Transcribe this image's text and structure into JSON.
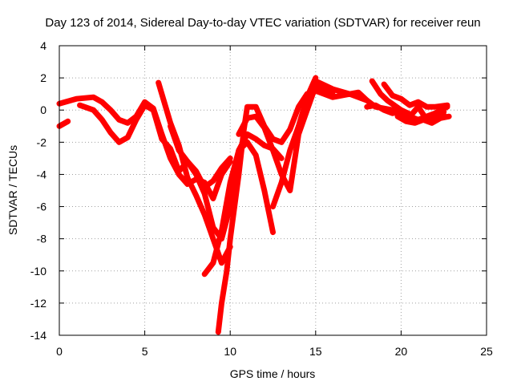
{
  "chart_data": {
    "type": "scatter",
    "title": "Day 123 of 2014, Sidereal Day-to-day VTEC variation (SDTVAR) for receiver reun",
    "xlabel": "GPS time / hours",
    "ylabel": "SDTVAR / TECUs",
    "xlim": [
      0,
      25
    ],
    "ylim": [
      -14,
      4
    ],
    "xticks": [
      0,
      5,
      10,
      15,
      20,
      25
    ],
    "yticks": [
      -14,
      -12,
      -10,
      -8,
      -6,
      -4,
      -2,
      0,
      2,
      4
    ],
    "grid": true,
    "marker": "plus",
    "color": "#ff0000",
    "series": [
      {
        "name": "arc-1",
        "x": [
          0,
          0.5
        ],
        "y": [
          -1,
          -0.7
        ]
      },
      {
        "name": "arc-2",
        "x": [
          0,
          1,
          2,
          2.5,
          3,
          3.5,
          4,
          4.5,
          5,
          5.5,
          6,
          6.5,
          7,
          7.5,
          8,
          8.5,
          9,
          9.5,
          10
        ],
        "y": [
          0.4,
          0.7,
          0.8,
          0.5,
          0,
          -0.6,
          -0.8,
          -0.4,
          0.5,
          0.1,
          -1.5,
          -3,
          -4,
          -4.6,
          -4.3,
          -4.5,
          -5.5,
          -4,
          -3.2
        ]
      },
      {
        "name": "arc-3",
        "x": [
          1.2,
          2,
          2.5,
          3,
          3.5,
          4,
          4.5,
          5,
          5.5,
          6,
          6.5,
          7,
          7.5,
          8,
          8.5,
          9,
          9.5,
          10
        ],
        "y": [
          0.3,
          0,
          -0.6,
          -1.4,
          -2,
          -1.7,
          -0.6,
          0.3,
          0,
          -1.8,
          -2.4,
          -3.8,
          -3.2,
          -3.8,
          -4.8,
          -4.4,
          -3.6,
          -3
        ]
      },
      {
        "name": "arc-4",
        "x": [
          5.8,
          6,
          6.5,
          7,
          7.5,
          8,
          8.5,
          9,
          9.5,
          10
        ],
        "y": [
          1.7,
          1,
          -0.8,
          -2.2,
          -4.2,
          -5.3,
          -6.5,
          -8,
          -9.5,
          -8.5
        ]
      },
      {
        "name": "arc-5",
        "x": [
          6.5,
          7,
          7.5,
          8,
          8.5,
          9,
          9.5,
          10,
          10.5,
          11,
          11.5,
          12,
          12.5
        ],
        "y": [
          -1,
          -2.5,
          -3.2,
          -4,
          -5.2,
          -7.3,
          -8,
          -6,
          -2.5,
          -2,
          -2.8,
          -5,
          -7.6
        ]
      },
      {
        "name": "arc-6",
        "x": [
          8.5,
          9,
          9.5,
          10,
          10.5,
          11,
          11.5,
          12,
          12.5,
          13
        ],
        "y": [
          -10.2,
          -9.5,
          -7.5,
          -4.5,
          -2.5,
          -1.5,
          -1.8,
          -2.2,
          -2.4,
          -3
        ]
      },
      {
        "name": "arc-7",
        "x": [
          9.3,
          9.5,
          9.8,
          10,
          10.5,
          10.8,
          11,
          11.5,
          12,
          12.5,
          13,
          13.5,
          14,
          14.5,
          15,
          15.5,
          16,
          17,
          18
        ],
        "y": [
          -13.8,
          -12,
          -10,
          -8,
          -4,
          -1.2,
          0.2,
          0.2,
          -1,
          -1.8,
          -2,
          -1.2,
          0.2,
          1,
          1.2,
          1,
          0.8,
          1,
          0.6
        ]
      },
      {
        "name": "arc-8",
        "x": [
          10.5,
          11,
          11.5,
          12,
          12.5,
          13,
          13.5,
          14,
          14.5,
          15,
          15.5,
          16
        ],
        "y": [
          -1.5,
          -0.5,
          -0.4,
          -1.1,
          -2.5,
          -4,
          -5,
          -1.5,
          0,
          1.5,
          1.3,
          1.1
        ]
      },
      {
        "name": "arc-9",
        "x": [
          12.5,
          13,
          13.5,
          14,
          14.5,
          15
        ],
        "y": [
          -6,
          -4.5,
          -2.5,
          -1,
          0.8,
          2
        ]
      },
      {
        "name": "arc-10",
        "x": [
          15,
          16,
          17,
          17.5,
          18,
          18.5,
          19,
          19.5,
          20,
          20.5,
          21,
          21.5,
          22,
          22.5
        ],
        "y": [
          1.8,
          1.3,
          1,
          1.1,
          0.6,
          0.2,
          0.1,
          0,
          -0.2,
          -0.4,
          -0.6,
          -0.5,
          -0.4,
          -0.3
        ]
      },
      {
        "name": "arc-11",
        "x": [
          18,
          18.5,
          19,
          19.5,
          20,
          20.5,
          21,
          21.5,
          22,
          22.5
        ],
        "y": [
          0.2,
          0.3,
          0,
          -0.2,
          -0.1,
          -0.5,
          -0.6,
          -0.4,
          -0.2,
          -0.1
        ]
      },
      {
        "name": "arc-12",
        "x": [
          18.3,
          18.8,
          19.2,
          19.6,
          20,
          20.6,
          21,
          21.5,
          22,
          22.7
        ],
        "y": [
          1.8,
          1,
          0.6,
          0.3,
          0,
          -0.3,
          0.2,
          -0.6,
          -0.2,
          0.2
        ]
      },
      {
        "name": "arc-13",
        "x": [
          19,
          19.5,
          20,
          20.5,
          21,
          21.5,
          22,
          22.7
        ],
        "y": [
          1.6,
          0.9,
          0.7,
          0.3,
          0.5,
          0.2,
          0.2,
          0.3
        ]
      },
      {
        "name": "arc-14",
        "x": [
          19.8,
          20.3,
          20.8,
          21.3,
          21.8,
          22.3,
          22.8
        ],
        "y": [
          -0.4,
          -0.7,
          -0.8,
          -0.6,
          -0.8,
          -0.5,
          -0.4
        ]
      }
    ]
  }
}
